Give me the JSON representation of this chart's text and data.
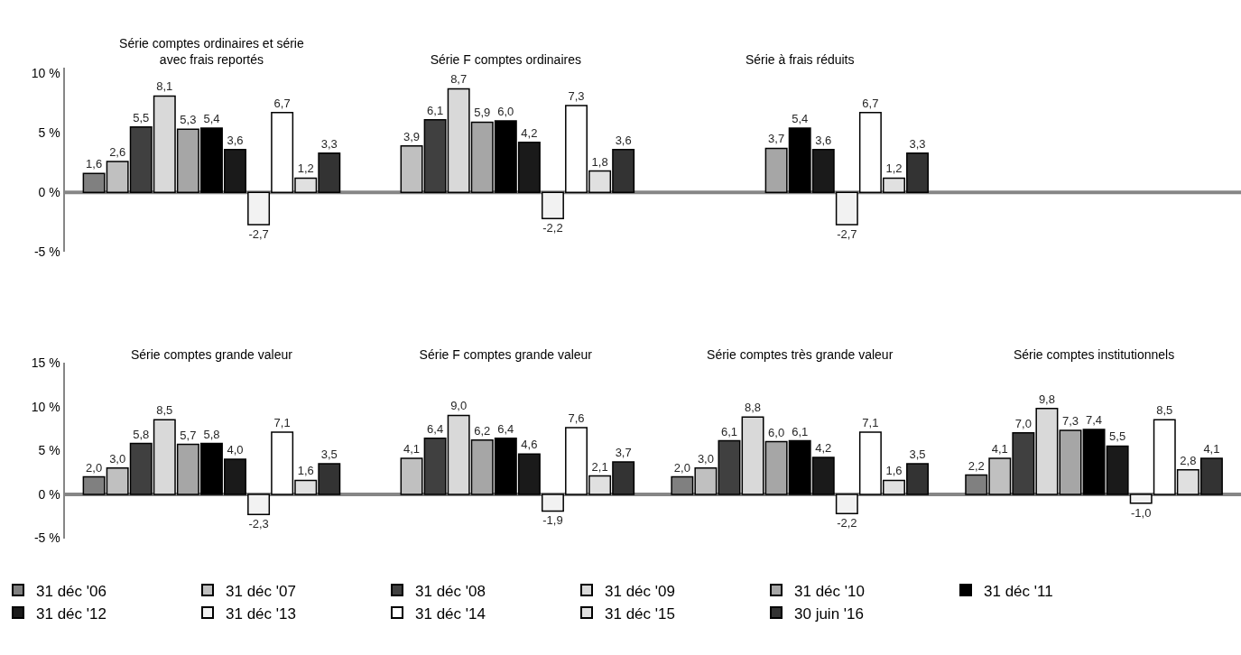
{
  "chart_data": [
    {
      "type": "bar",
      "categories": [
        "Série comptes ordinaires et série avec frais reportés",
        "Série F comptes ordinaires",
        "Série à frais réduits",
        null
      ],
      "ylim": [
        -5,
        10.5
      ],
      "yticks": [
        {
          "value": -5,
          "label": "-5 %"
        },
        {
          "value": 0,
          "label": "0 %"
        },
        {
          "value": 5,
          "label": "5 %"
        },
        {
          "value": 10,
          "label": "10 %"
        }
      ],
      "legend": "bottom",
      "ref_lines": [
        {
          "axis": "y",
          "value": 0,
          "color": "#868686"
        }
      ],
      "series": [
        {
          "name": "31 déc '06",
          "color": "#808080",
          "values": [
            1.6,
            null,
            null,
            null
          ],
          "value_labels": [
            "1,6",
            null,
            null,
            null
          ]
        },
        {
          "name": "31 déc '07",
          "color": "#c0c0c0",
          "values": [
            2.6,
            3.9,
            null,
            null
          ],
          "value_labels": [
            "2,6",
            "3,9",
            null,
            null
          ]
        },
        {
          "name": "31 déc '08",
          "color": "#404040",
          "values": [
            5.5,
            6.1,
            null,
            null
          ],
          "value_labels": [
            "5,5",
            "6,1",
            null,
            null
          ]
        },
        {
          "name": "31 déc '09",
          "color": "#d9d9d9",
          "values": [
            8.1,
            8.7,
            null,
            null
          ],
          "value_labels": [
            "8,1",
            "8,7",
            null,
            null
          ]
        },
        {
          "name": "31 déc '10",
          "color": "#a6a6a6",
          "values": [
            5.3,
            5.9,
            3.7,
            null
          ],
          "value_labels": [
            "5,3",
            "5,9",
            "3,7",
            null
          ]
        },
        {
          "name": "31 déc '11",
          "color": "#000000",
          "values": [
            5.4,
            6.0,
            5.4,
            null
          ],
          "value_labels": [
            "5,4",
            "6,0",
            "5,4",
            null
          ]
        },
        {
          "name": "31 déc '12",
          "color": "#1a1a1a",
          "values": [
            3.6,
            4.2,
            3.6,
            null
          ],
          "value_labels": [
            "3,6",
            "4,2",
            "3,6",
            null
          ]
        },
        {
          "name": "31 déc '13",
          "color": "#f2f2f2",
          "values": [
            -2.7,
            -2.2,
            -2.7,
            null
          ],
          "value_labels": [
            "-2,7",
            "-2,2",
            "-2,7",
            null
          ]
        },
        {
          "name": "31 déc '14",
          "color": "#ffffff",
          "values": [
            6.7,
            7.3,
            6.7,
            null
          ],
          "value_labels": [
            "6,7",
            "7,3",
            "6,7",
            null
          ]
        },
        {
          "name": "31 déc '15",
          "color": "#e0e0e0",
          "values": [
            1.2,
            1.8,
            1.2,
            null
          ],
          "value_labels": [
            "1,2",
            "1,8",
            "1,2",
            null
          ]
        },
        {
          "name": "30 juin '16",
          "color": "#333333",
          "values": [
            3.3,
            3.6,
            3.3,
            null
          ],
          "value_labels": [
            "3,3",
            "3,6",
            "3,3",
            null
          ]
        }
      ]
    },
    {
      "type": "bar",
      "categories": [
        "Série comptes grande valeur",
        "Série F comptes grande valeur",
        "Série comptes très grande valeur",
        "Série comptes institutionnels"
      ],
      "ylim": [
        -5,
        15
      ],
      "yticks": [
        {
          "value": -5,
          "label": "-5 %"
        },
        {
          "value": 0,
          "label": "0 %"
        },
        {
          "value": 5,
          "label": "5 %"
        },
        {
          "value": 10,
          "label": "10 %"
        },
        {
          "value": 15,
          "label": "15 %"
        }
      ],
      "legend": "bottom",
      "ref_lines": [
        {
          "axis": "y",
          "value": 0,
          "color": "#868686"
        }
      ],
      "series": [
        {
          "color": "#808080",
          "values": [
            2.0,
            null,
            2.0,
            2.2
          ],
          "value_labels": [
            "2,0",
            null,
            "2,0",
            "2,2"
          ]
        },
        {
          "color": "#c0c0c0",
          "values": [
            3.0,
            4.1,
            3.0,
            4.1
          ],
          "value_labels": [
            "3,0",
            "4,1",
            "3,0",
            "4,1"
          ]
        },
        {
          "color": "#404040",
          "values": [
            5.8,
            6.4,
            6.1,
            7.0
          ],
          "value_labels": [
            "5,8",
            "6,4",
            "6,1",
            "7,0"
          ]
        },
        {
          "color": "#d9d9d9",
          "values": [
            8.5,
            9.0,
            8.8,
            9.8
          ],
          "value_labels": [
            "8,5",
            "9,0",
            "8,8",
            "9,8"
          ]
        },
        {
          "color": "#a6a6a6",
          "values": [
            5.7,
            6.2,
            6.0,
            7.3
          ],
          "value_labels": [
            "5,7",
            "6,2",
            "6,0",
            "7,3"
          ]
        },
        {
          "color": "#000000",
          "values": [
            5.8,
            6.4,
            6.1,
            7.4
          ],
          "value_labels": [
            "5,8",
            "6,4",
            "6,1",
            "7,4"
          ]
        },
        {
          "color": "#1a1a1a",
          "values": [
            4.0,
            4.6,
            4.2,
            5.5
          ],
          "value_labels": [
            "4,0",
            "4,6",
            "4,2",
            "5,5"
          ]
        },
        {
          "color": "#f2f2f2",
          "values": [
            -2.3,
            -1.9,
            -2.2,
            -1.0
          ],
          "value_labels": [
            "-2,3",
            "-1,9",
            "-2,2",
            "-1,0"
          ]
        },
        {
          "color": "#ffffff",
          "values": [
            7.1,
            7.6,
            7.1,
            8.5
          ],
          "value_labels": [
            "7,1",
            "7,6",
            "7,1",
            "8,5"
          ]
        },
        {
          "color": "#e0e0e0",
          "values": [
            1.6,
            2.1,
            1.6,
            2.8
          ],
          "value_labels": [
            "1,6",
            "2,1",
            "1,6",
            "2,8"
          ]
        },
        {
          "color": "#333333",
          "values": [
            3.5,
            3.7,
            3.5,
            4.1
          ],
          "value_labels": [
            "3,5",
            "3,7",
            "3,5",
            "4,1"
          ]
        }
      ]
    }
  ]
}
